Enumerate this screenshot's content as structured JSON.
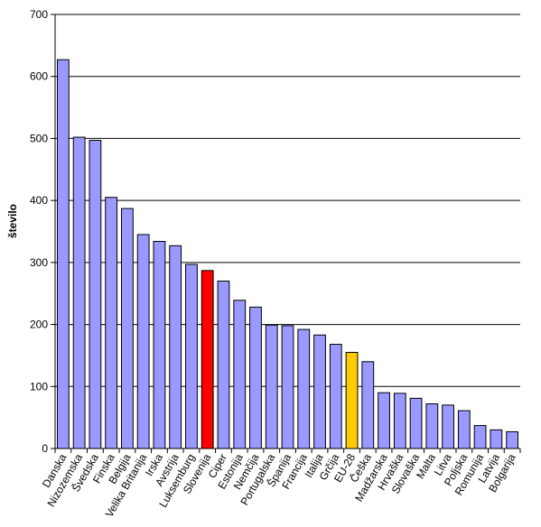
{
  "chart_data": {
    "type": "bar",
    "title": "",
    "xlabel": "",
    "ylabel": "število",
    "ylim": [
      0,
      700
    ],
    "yticks": [
      0,
      100,
      200,
      300,
      400,
      500,
      600,
      700
    ],
    "grid": true,
    "legend": "none",
    "categories": [
      "Danska",
      "Nizozemska",
      "Švedska",
      "Finska",
      "Belgija",
      "Velika Britanija",
      "Irska",
      "Avstrija",
      "Luksemburg",
      "Slovenija",
      "Ciper",
      "Estonija",
      "Nemčija",
      "Portugalska",
      "Španija",
      "Francija",
      "Italija",
      "Grčija",
      "EU-28",
      "Češka",
      "Madžarska",
      "Hrvaška",
      "Slovaška",
      "Malta",
      "Litva",
      "Poljska",
      "Romunija",
      "Latvija",
      "Bolgarija"
    ],
    "values": [
      627,
      502,
      497,
      405,
      387,
      345,
      334,
      327,
      297,
      287,
      270,
      239,
      228,
      199,
      198,
      192,
      183,
      168,
      155,
      140,
      90,
      89,
      81,
      72,
      70,
      61,
      37,
      30,
      27
    ],
    "colors": {
      "default": "#9999FF",
      "highlight": "#FF0000",
      "average": "#FFCC00",
      "outline": "#000000",
      "grid": "#000000"
    },
    "highlight_category": "Slovenija",
    "average_category": "EU-28"
  }
}
